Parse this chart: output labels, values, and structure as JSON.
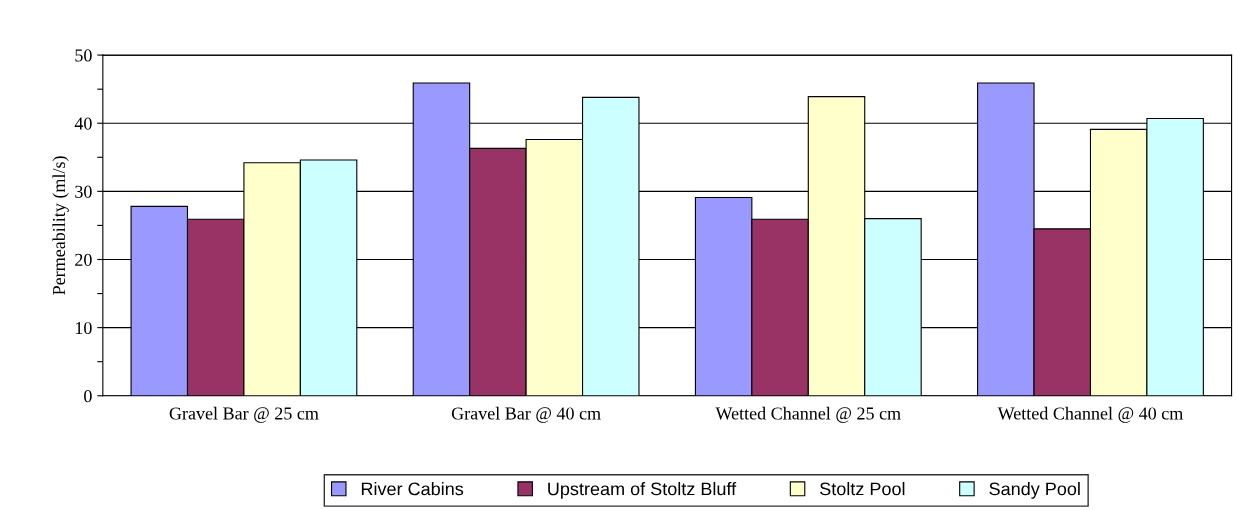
{
  "chart_data": {
    "type": "bar",
    "ylabel": "Permeability (ml/s)",
    "categories": [
      "Gravel Bar @ 25 cm",
      "Gravel Bar @ 40 cm",
      "Wetted Channel @ 25 cm",
      "Wetted Channel @ 40 cm"
    ],
    "series": [
      {
        "name": "River Cabins",
        "color": "#9999ff",
        "values": [
          27.8,
          45.9,
          29.1,
          45.9
        ]
      },
      {
        "name": "Upstream of Stoltz Bluff",
        "color": "#993366",
        "values": [
          25.9,
          36.3,
          25.9,
          24.5
        ]
      },
      {
        "name": "Stoltz Pool",
        "color": "#ffffcc",
        "values": [
          34.2,
          37.6,
          43.9,
          39.1
        ]
      },
      {
        "name": "Sandy Pool",
        "color": "#ccffff",
        "values": [
          34.6,
          43.8,
          26.0,
          40.7
        ]
      }
    ],
    "ylim": [
      0,
      50
    ],
    "yticks": [
      0,
      {
        "value": 5,
        "label": null
      },
      10,
      {
        "value": 15,
        "label": null
      },
      20,
      {
        "value": 25,
        "label": null
      },
      30,
      {
        "value": 35,
        "label": null
      },
      40,
      {
        "value": 45,
        "label": null
      },
      50
    ],
    "grid": "y",
    "legend": "bottom"
  }
}
